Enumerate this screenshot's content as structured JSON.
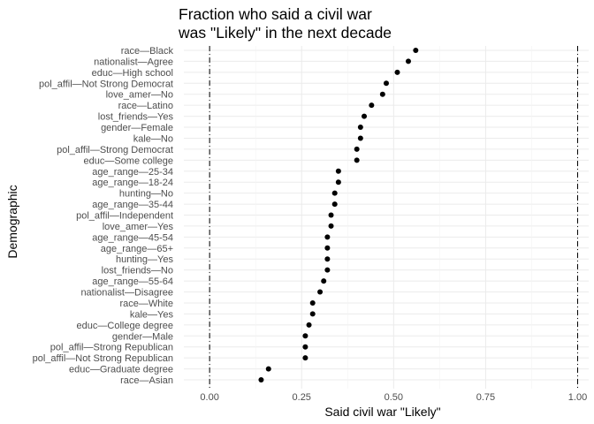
{
  "chart_data": {
    "type": "scatter",
    "title_lines": [
      "Fraction who said a civil war",
      "was \"Likely\" in the next decade"
    ],
    "xlabel": "Said civil war \"Likely\"",
    "ylabel": "Demographic",
    "xlim": [
      -0.07,
      1.03
    ],
    "x_ticks": [
      0.0,
      0.25,
      0.5,
      0.75,
      1.0
    ],
    "x_tick_labels": [
      "0.00",
      "0.25",
      "0.50",
      "0.75",
      "1.00"
    ],
    "reference_lines": [
      0.0,
      1.0
    ],
    "grid": true,
    "point_color": "#000000",
    "categories": [
      "race—Black",
      "nationalist—Agree",
      "educ—High school",
      "pol_affil—Not Strong Democrat",
      "love_amer—No",
      "race—Latino",
      "lost_friends—Yes",
      "gender—Female",
      "kale—No",
      "pol_affil—Strong Democrat",
      "educ—Some college",
      "age_range—25-34",
      "age_range—18-24",
      "hunting—No",
      "age_range—35-44",
      "pol_affil—Independent",
      "love_amer—Yes",
      "age_range—45-54",
      "age_range—65+",
      "hunting—Yes",
      "lost_friends—No",
      "age_range—55-64",
      "nationalist—Disagree",
      "race—White",
      "kale—Yes",
      "educ—College degree",
      "gender—Male",
      "pol_affil—Strong Republican",
      "pol_affil—Not Strong Republican",
      "educ—Graduate degree",
      "race—Asian"
    ],
    "values": [
      0.56,
      0.54,
      0.51,
      0.48,
      0.47,
      0.44,
      0.42,
      0.41,
      0.41,
      0.4,
      0.4,
      0.35,
      0.35,
      0.34,
      0.34,
      0.33,
      0.33,
      0.32,
      0.32,
      0.32,
      0.32,
      0.31,
      0.3,
      0.28,
      0.28,
      0.27,
      0.26,
      0.26,
      0.26,
      0.16,
      0.14
    ]
  }
}
